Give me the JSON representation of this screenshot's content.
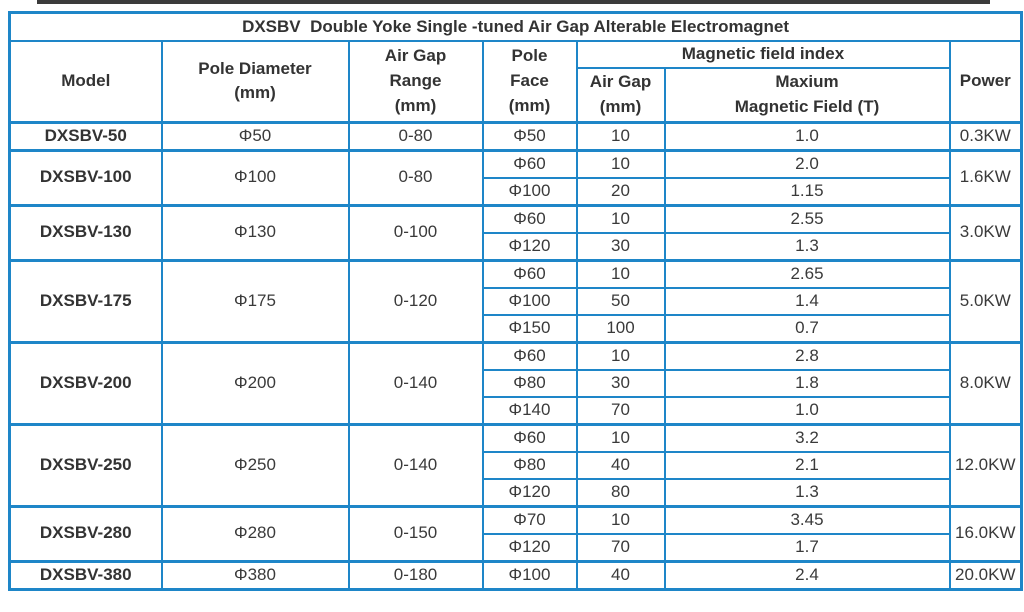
{
  "page": {
    "background": "#ffffff",
    "top_rule_color": "#3b3b3b"
  },
  "table": {
    "border_color": "#1e86c8",
    "text_color": "#3a3a3a",
    "title": "DXSBV  Double Yoke Single -tuned Air Gap Alterable Electromagnet",
    "headers": {
      "model": "Model",
      "pole_diameter": "Pole Diameter\n(mm)",
      "air_gap_range": "Air Gap\nRange\n(mm)",
      "pole_face": "Pole\nFace\n(mm)",
      "magnetic_field_index": "Magnetic field index",
      "air_gap": "Air Gap\n(mm)",
      "max_field": "Maxium\nMagnetic  Field  (T)",
      "power": "Power"
    },
    "rows": [
      {
        "model": "DXSBV-50",
        "pole_diameter": "Φ50",
        "air_gap_range": "0-80",
        "power": "0.3KW",
        "sub_rows": [
          {
            "pole_face": "Φ50",
            "air_gap": "10",
            "max_field": "1.0"
          }
        ]
      },
      {
        "model": "DXSBV-100",
        "pole_diameter": "Φ100",
        "air_gap_range": "0-80",
        "power": "1.6KW",
        "sub_rows": [
          {
            "pole_face": "Φ60",
            "air_gap": "10",
            "max_field": "2.0"
          },
          {
            "pole_face": "Φ100",
            "air_gap": "20",
            "max_field": "1.15"
          }
        ]
      },
      {
        "model": "DXSBV-130",
        "pole_diameter": "Φ130",
        "air_gap_range": "0-100",
        "power": "3.0KW",
        "sub_rows": [
          {
            "pole_face": "Φ60",
            "air_gap": "10",
            "max_field": "2.55"
          },
          {
            "pole_face": "Φ120",
            "air_gap": "30",
            "max_field": "1.3"
          }
        ]
      },
      {
        "model": "DXSBV-175",
        "pole_diameter": "Φ175",
        "air_gap_range": "0-120",
        "power": "5.0KW",
        "sub_rows": [
          {
            "pole_face": "Φ60",
            "air_gap": "10",
            "max_field": "2.65"
          },
          {
            "pole_face": "Φ100",
            "air_gap": "50",
            "max_field": "1.4"
          },
          {
            "pole_face": "Φ150",
            "air_gap": "100",
            "max_field": "0.7"
          }
        ]
      },
      {
        "model": "DXSBV-200",
        "pole_diameter": "Φ200",
        "air_gap_range": "0-140",
        "power": "8.0KW",
        "sub_rows": [
          {
            "pole_face": "Φ60",
            "air_gap": "10",
            "max_field": "2.8"
          },
          {
            "pole_face": "Φ80",
            "air_gap": "30",
            "max_field": "1.8"
          },
          {
            "pole_face": "Φ140",
            "air_gap": "70",
            "max_field": "1.0"
          }
        ]
      },
      {
        "model": "DXSBV-250",
        "pole_diameter": "Φ250",
        "air_gap_range": "0-140",
        "power": "12.0KW",
        "sub_rows": [
          {
            "pole_face": "Φ60",
            "air_gap": "10",
            "max_field": "3.2"
          },
          {
            "pole_face": "Φ80",
            "air_gap": "40",
            "max_field": "2.1"
          },
          {
            "pole_face": "Φ120",
            "air_gap": "80",
            "max_field": "1.3"
          }
        ]
      },
      {
        "model": "DXSBV-280",
        "pole_diameter": "Φ280",
        "air_gap_range": "0-150",
        "power": "16.0KW",
        "sub_rows": [
          {
            "pole_face": "Φ70",
            "air_gap": "10",
            "max_field": "3.45"
          },
          {
            "pole_face": "Φ120",
            "air_gap": "70",
            "max_field": "1.7"
          }
        ]
      },
      {
        "model": "DXSBV-380",
        "pole_diameter": "Φ380",
        "air_gap_range": "0-180",
        "power": "20.0KW",
        "sub_rows": [
          {
            "pole_face": "Φ100",
            "air_gap": "40",
            "max_field": "2.4"
          }
        ]
      }
    ]
  }
}
